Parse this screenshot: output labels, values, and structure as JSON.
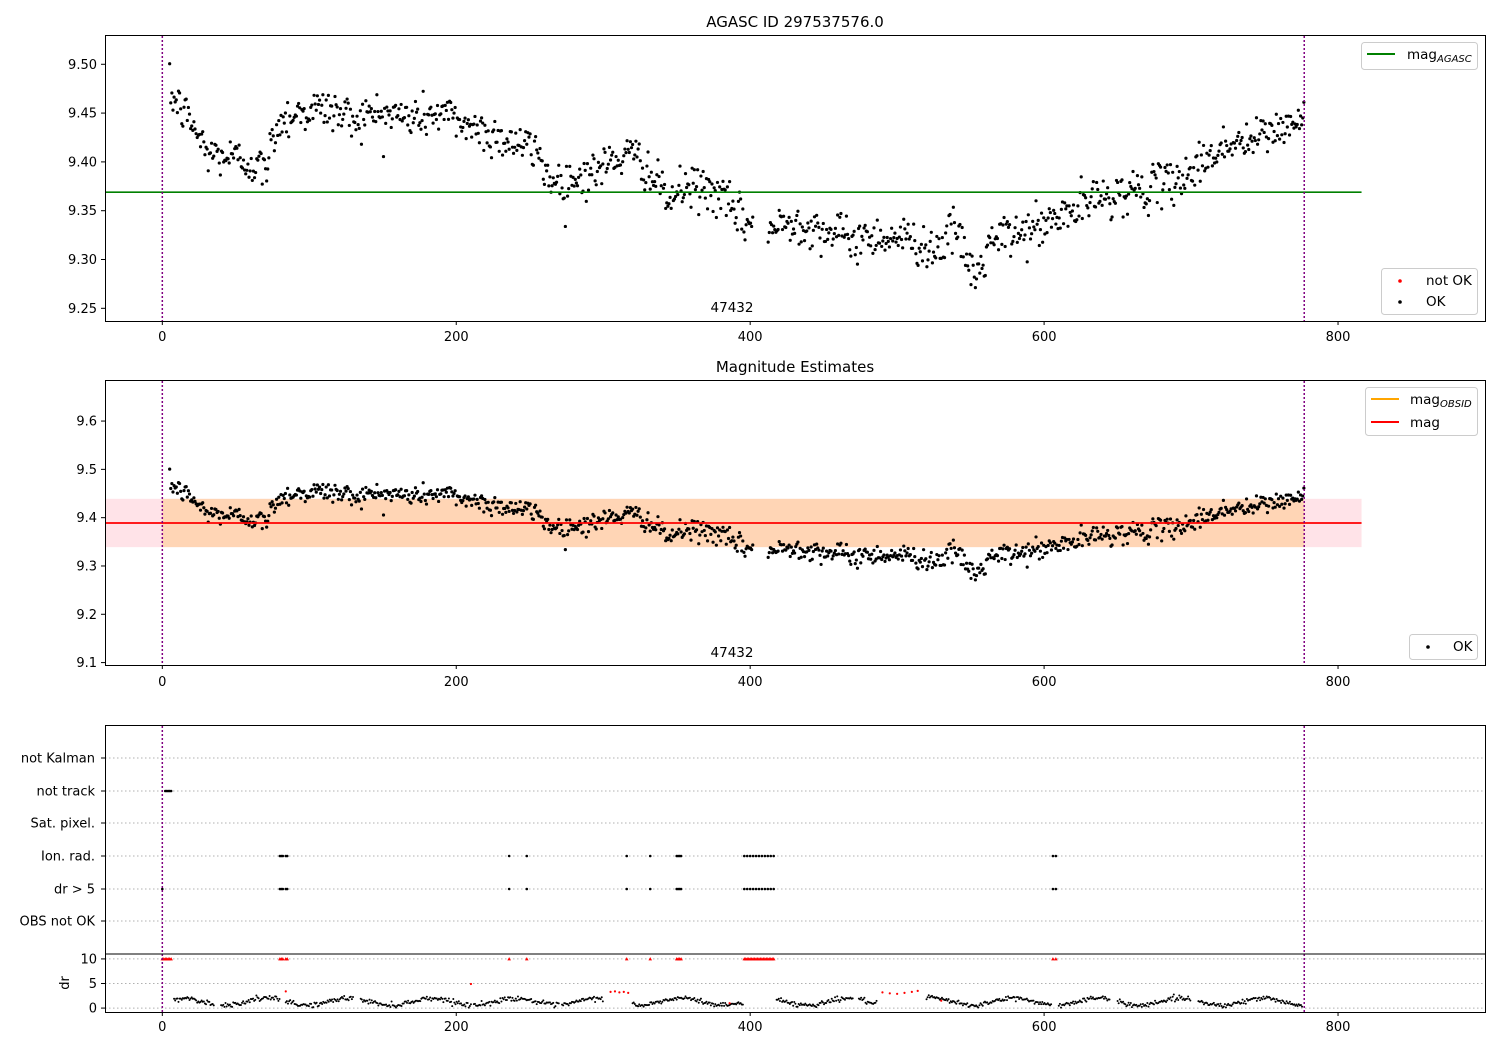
{
  "chart_data": [
    {
      "type": "scatter",
      "title": "AGASC ID 297537576.0",
      "xlabel": "",
      "ylabel": "",
      "xlim": [
        -39,
        900
      ],
      "ylim": [
        9.237,
        9.53
      ],
      "xticks": [
        "0",
        "200",
        "400",
        "600",
        "800"
      ],
      "yticks": [
        "9.25",
        "9.30",
        "9.35",
        "9.40",
        "9.45",
        "9.50"
      ],
      "annotation": "47432",
      "vlines": [
        0,
        777
      ],
      "hlines": [
        {
          "name": "mag_AGASC",
          "y": 9.369,
          "x_range": [
            -39,
            816
          ],
          "color": "#008000"
        }
      ],
      "legend_lines": {
        "name": "mag",
        "sub": "AGASC",
        "color": "#008000"
      },
      "legend_points": [
        {
          "name": "not OK",
          "color": "#ff0000"
        },
        {
          "name": "OK",
          "color": "#000000"
        }
      ],
      "series": [
        {
          "name": "OK",
          "color": "#000000",
          "points_source": "mag_trend",
          "trend_x": [
            5,
            10,
            20,
            30,
            45,
            60,
            70,
            78,
            90,
            110,
            130,
            150,
            170,
            190,
            205,
            220,
            240,
            255,
            265,
            275,
            295,
            310,
            325,
            335,
            345,
            352,
            360,
            375,
            385,
            395,
            415,
            430,
            450,
            470,
            490,
            510,
            525,
            540,
            553,
            565,
            580,
            600,
            620,
            640,
            660,
            680,
            700,
            720,
            740,
            760,
            777
          ],
          "trend_y": [
            9.47,
            9.46,
            9.44,
            9.41,
            9.405,
            9.4,
            9.39,
            9.44,
            9.45,
            9.455,
            9.445,
            9.45,
            9.445,
            9.45,
            9.44,
            9.43,
            9.42,
            9.41,
            9.38,
            9.38,
            9.39,
            9.405,
            9.405,
            9.38,
            9.36,
            9.37,
            9.375,
            9.37,
            9.355,
            9.34,
            9.33,
            9.34,
            9.33,
            9.32,
            9.325,
            9.32,
            9.31,
            9.33,
            9.28,
            9.32,
            9.325,
            9.335,
            9.35,
            9.365,
            9.37,
            9.375,
            9.39,
            9.415,
            9.42,
            9.435,
            9.44
          ],
          "gaps": [
            [
              402,
              412
            ]
          ]
        }
      ]
    },
    {
      "type": "scatter",
      "title": "Magnitude Estimates",
      "xlim": [
        -39,
        900
      ],
      "ylim": [
        9.095,
        9.685
      ],
      "xticks": [
        "0",
        "200",
        "400",
        "600",
        "800"
      ],
      "yticks": [
        "9.1",
        "9.2",
        "9.3",
        "9.4",
        "9.5",
        "9.6"
      ],
      "annotation": "47432",
      "vlines": [
        0,
        777
      ],
      "band_mag": {
        "y_low": 9.339,
        "y_high": 9.439,
        "color": "#ffc0cb"
      },
      "band_obsid": {
        "y_low": 9.339,
        "y_high": 9.439,
        "color": "#ffa500"
      },
      "hlines": [
        {
          "name": "mag",
          "y": 9.389,
          "x_range": [
            -39,
            816
          ],
          "color": "#ff0000"
        }
      ],
      "legend_lines": [
        {
          "name": "mag",
          "sub": "OBSID",
          "color": "#ffa500"
        },
        {
          "name": "mag",
          "sub": "",
          "color": "#ff0000"
        }
      ],
      "legend_points": [
        {
          "name": "OK",
          "color": "#000000"
        }
      ]
    },
    {
      "type": "scatter",
      "title": "",
      "xlim": [
        -39,
        900
      ],
      "xticks": [
        "0",
        "200",
        "400",
        "600",
        "800"
      ],
      "categories": [
        "not Kalman",
        "not track",
        "Sat. pixel.",
        "Ion. rad.",
        "dr > 5",
        "OBS not OK"
      ],
      "vlines": [
        0,
        777
      ],
      "flag_points": {
        "not track": [
          2,
          3,
          4,
          5,
          6
        ],
        "Ion. rad.": [
          80,
          81,
          82,
          84,
          85,
          236,
          248,
          316,
          332,
          350,
          351,
          352,
          353,
          396,
          398,
          400,
          402,
          404,
          406,
          408,
          410,
          412,
          414,
          416,
          606,
          608
        ],
        "dr > 5": [
          0,
          80,
          81,
          82,
          84,
          85,
          236,
          248,
          316,
          332,
          350,
          351,
          352,
          353,
          396,
          398,
          400,
          402,
          404,
          406,
          408,
          410,
          412,
          414,
          416,
          606,
          608
        ]
      },
      "dr_panel": {
        "ylabel": "dr",
        "ylim": [
          -1,
          11
        ],
        "yticks": [
          "0",
          "5",
          "10"
        ],
        "clipped_red_x": [
          0,
          1,
          2,
          3,
          4,
          5,
          6,
          80,
          81,
          82,
          84,
          85,
          236,
          248,
          316,
          332,
          350,
          351,
          352,
          353,
          396,
          397,
          398,
          399,
          400,
          401,
          402,
          403,
          404,
          405,
          406,
          407,
          408,
          409,
          410,
          411,
          412,
          413,
          414,
          415,
          416,
          606,
          608
        ],
        "red_points": [
          [
            84,
            3.4
          ],
          [
            210,
            4.9
          ],
          [
            305,
            3.3
          ],
          [
            308,
            3.4
          ],
          [
            311,
            3.2
          ],
          [
            314,
            3.3
          ],
          [
            317,
            3.1
          ],
          [
            490,
            3.2
          ],
          [
            495,
            3.0
          ],
          [
            500,
            2.9
          ],
          [
            505,
            3.1
          ],
          [
            510,
            3.3
          ],
          [
            514,
            3.5
          ],
          [
            386,
            1.0
          ],
          [
            530,
            1.5
          ]
        ],
        "black_segments": [
          [
            8,
            35
          ],
          [
            40,
            80
          ],
          [
            84,
            130
          ],
          [
            135,
            210
          ],
          [
            212,
            270
          ],
          [
            272,
            300
          ],
          [
            320,
            395
          ],
          [
            418,
            470
          ],
          [
            474,
            486
          ],
          [
            520,
            605
          ],
          [
            610,
            645
          ],
          [
            650,
            700
          ],
          [
            705,
            776
          ]
        ]
      }
    }
  ]
}
